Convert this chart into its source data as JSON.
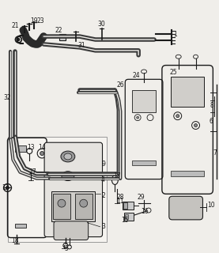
{
  "bg_color": "#f0eeea",
  "line_color": "#3a3a3a",
  "dark_color": "#1a1a1a",
  "gray_color": "#888888",
  "figsize": [
    2.77,
    3.2
  ],
  "dpi": 100,
  "xlim": [
    0,
    277
  ],
  "ylim": [
    0,
    320
  ]
}
